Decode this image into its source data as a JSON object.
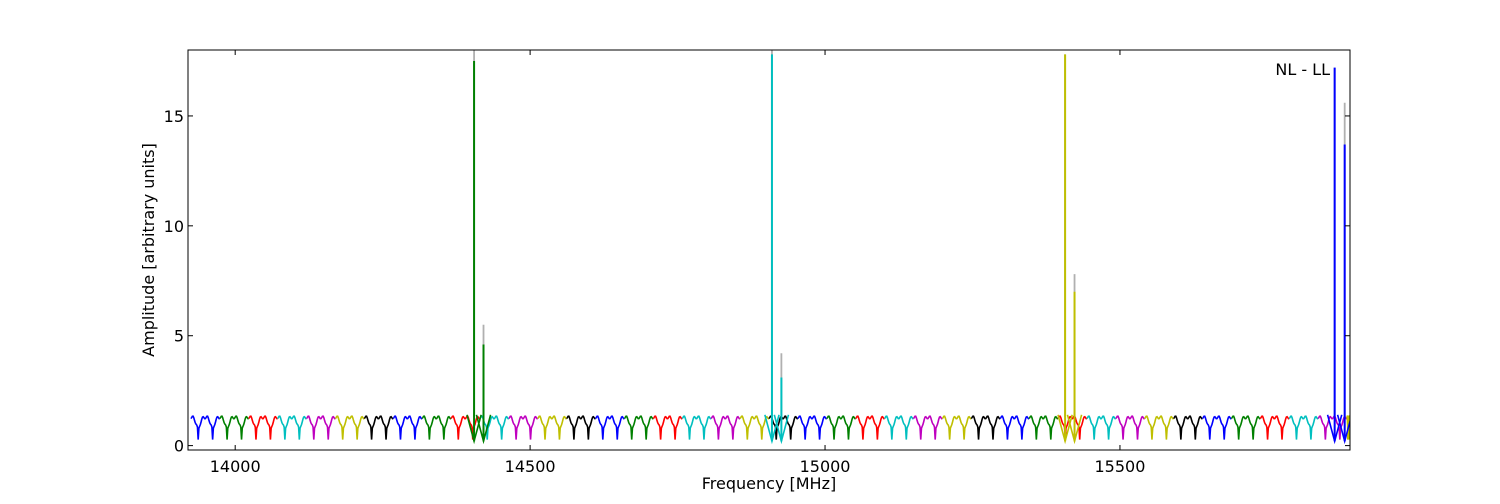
{
  "chart_data": {
    "type": "line",
    "title": "",
    "annotation": "NL - LL",
    "xlabel": "Frequency [MHz]",
    "ylabel": "Amplitude [arbitrary units]",
    "xlim": [
      13920,
      15890
    ],
    "ylim": [
      -0.2,
      18
    ],
    "xticks": [
      {
        "value": 14000,
        "label": "14000"
      },
      {
        "value": 14500,
        "label": "14500"
      },
      {
        "value": 15000,
        "label": "15000"
      },
      {
        "value": 15500,
        "label": "15500"
      }
    ],
    "yticks": [
      {
        "value": 0,
        "label": "0"
      },
      {
        "value": 5,
        "label": "5"
      },
      {
        "value": 10,
        "label": "10"
      },
      {
        "value": 15,
        "label": "15"
      }
    ],
    "grid": false,
    "legend": "none",
    "segment_colors": [
      "#0000ff",
      "#008000",
      "#ff0000",
      "#00bfbf",
      "#bf00bf",
      "#bfbf00",
      "#000000"
    ],
    "ghost_color": "#b0b0b0",
    "baseline": {
      "x_start": 13925,
      "x_end": 15890,
      "segment_width": 49,
      "dips_per_segment": 2,
      "amplitude_high": 1.3,
      "amplitude_low": 0.2
    },
    "peaks": [
      {
        "x": 14405,
        "y": 17.5,
        "ghost_y": 18.0,
        "color": "#008000"
      },
      {
        "x": 14421,
        "y": 4.6,
        "ghost_y": 5.5,
        "color": "#008000"
      },
      {
        "x": 14910,
        "y": 17.8,
        "ghost_y": 18.0,
        "color": "#00bfbf"
      },
      {
        "x": 14926,
        "y": 3.1,
        "ghost_y": 4.2,
        "color": "#00bfbf"
      },
      {
        "x": 15407,
        "y": 17.8,
        "ghost_y": 17.8,
        "color": "#bfbf00"
      },
      {
        "x": 15423,
        "y": 7.0,
        "ghost_y": 7.8,
        "color": "#bfbf00"
      },
      {
        "x": 15864,
        "y": 17.2,
        "ghost_y": 17.2,
        "color": "#0000ff"
      },
      {
        "x": 15881,
        "y": 13.7,
        "ghost_y": 15.6,
        "color": "#0000ff"
      }
    ]
  }
}
